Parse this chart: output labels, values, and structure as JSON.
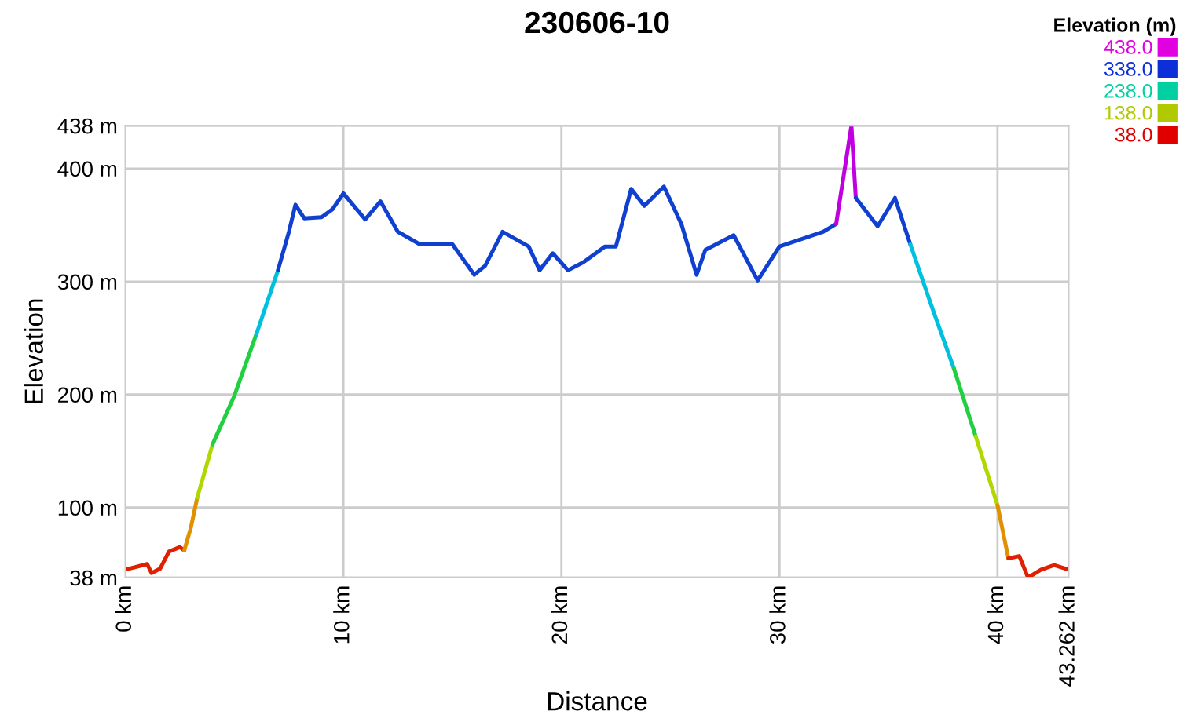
{
  "chart_data": {
    "type": "line",
    "title": "230606-10",
    "xlabel": "Distance",
    "ylabel": "Elevation",
    "clabel": "Elevation (m)",
    "clim": [
      38,
      438
    ],
    "cticks": [
      {
        "value": 438,
        "label": "438.0"
      },
      {
        "value": 338,
        "label": "338.0"
      },
      {
        "value": 238,
        "label": "238.0"
      },
      {
        "value": 138,
        "label": "138.0"
      },
      {
        "value": 38,
        "label": "38.0"
      }
    ],
    "series": [
      {
        "color": "#e02000",
        "x": [
          0,
          1.0,
          1.2,
          1.6,
          2.0,
          2.5,
          2.7
        ],
        "values": [
          45,
          50,
          42,
          46,
          61,
          65,
          62
        ]
      },
      {
        "color": "#e09000",
        "x": [
          2.7,
          3.0,
          3.3
        ],
        "values": [
          62,
          82,
          109
        ]
      },
      {
        "color": "#b0d800",
        "x": [
          3.3,
          4.0
        ],
        "values": [
          109,
          156
        ]
      },
      {
        "color": "#20d040",
        "x": [
          4.0,
          5.0,
          6.0
        ],
        "values": [
          156,
          199,
          253
        ]
      },
      {
        "color": "#00c0e0",
        "x": [
          6.0,
          7.0
        ],
        "values": [
          253,
          310
        ]
      },
      {
        "color": "#1040d0",
        "x": [
          7.0,
          7.5,
          7.8,
          8.2,
          9.0,
          9.5,
          10.0,
          11.0,
          11.7,
          12.5,
          13.5,
          15.0,
          16.0,
          16.5,
          17.3,
          18.5,
          19.0,
          19.6,
          20.3,
          21.0,
          22.0,
          22.5,
          23.2,
          23.8,
          24.7,
          25.5,
          26.2,
          26.6,
          27.9,
          29.0,
          30.0,
          32.0,
          32.6
        ],
        "values": [
          310,
          344,
          368,
          356,
          357,
          364,
          378,
          355,
          371,
          344,
          333,
          333,
          306,
          314,
          344,
          331,
          310,
          325,
          310,
          317,
          331,
          331,
          382,
          367,
          384,
          351,
          306,
          328,
          341,
          301,
          331,
          344,
          351
        ]
      },
      {
        "color": "#c000e0",
        "x": [
          32.6,
          33.3,
          33.5
        ],
        "values": [
          351,
          438,
          374
        ]
      },
      {
        "color": "#1040d0",
        "x": [
          33.5,
          34.5,
          35.3,
          36.0
        ],
        "values": [
          374,
          349,
          374,
          333
        ]
      },
      {
        "color": "#00c0e0",
        "x": [
          36.0,
          37.0,
          38.0
        ],
        "values": [
          333,
          277,
          223
        ]
      },
      {
        "color": "#20d040",
        "x": [
          38.0,
          39.0
        ],
        "values": [
          223,
          163
        ]
      },
      {
        "color": "#b0d800",
        "x": [
          39.0,
          40.0
        ],
        "values": [
          163,
          102
        ]
      },
      {
        "color": "#e09000",
        "x": [
          40.0,
          40.5
        ],
        "values": [
          102,
          55
        ]
      },
      {
        "color": "#e02000",
        "x": [
          40.5,
          41.0,
          41.4,
          42.0,
          42.6,
          43.262
        ],
        "values": [
          55,
          57,
          38,
          45,
          49,
          45
        ]
      }
    ],
    "xlim": [
      0,
      43.262
    ],
    "xticks": [
      {
        "value": 0,
        "label": "0 km"
      },
      {
        "value": 10,
        "label": "10 km"
      },
      {
        "value": 20,
        "label": "20 km"
      },
      {
        "value": 30,
        "label": "30 km"
      },
      {
        "value": 40,
        "label": "40 km"
      },
      {
        "value": 43.262,
        "label": "43.262 km"
      }
    ],
    "ylim": [
      38,
      438
    ],
    "yticks": [
      {
        "value": 38,
        "label": "38 m"
      },
      {
        "value": 100,
        "label": "100 m"
      },
      {
        "value": 200,
        "label": "200 m"
      },
      {
        "value": 300,
        "label": "300 m"
      },
      {
        "value": 400,
        "label": "400 m"
      },
      {
        "value": 438,
        "label": "438 m"
      }
    ],
    "grid": true
  }
}
